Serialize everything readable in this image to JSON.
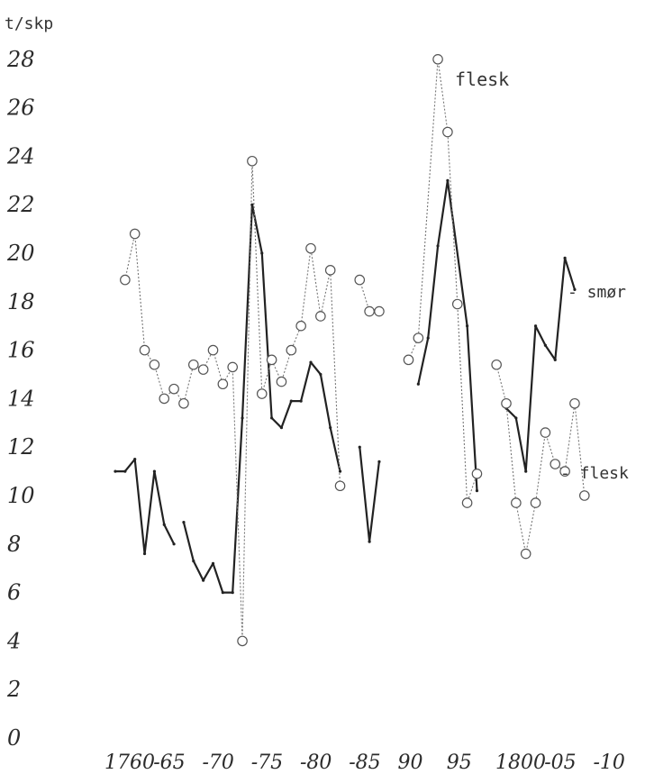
{
  "chart_data": {
    "type": "line",
    "ylabel": "t/skp",
    "ylim": [
      0,
      28
    ],
    "xlim": [
      1760,
      1810
    ],
    "y_ticks": [
      "0",
      "2",
      "4",
      "6",
      "8",
      "10",
      "12",
      "14",
      "16",
      "18",
      "20",
      "22",
      "24",
      "26",
      "28"
    ],
    "x_ticks": [
      {
        "value": 1760,
        "label": "1760"
      },
      {
        "value": 1765,
        "label": "-65"
      },
      {
        "value": 1770,
        "label": "-70"
      },
      {
        "value": 1775,
        "label": "-75"
      },
      {
        "value": 1780,
        "label": "-80"
      },
      {
        "value": 1785,
        "label": "-85"
      },
      {
        "value": 1790,
        "label": "90"
      },
      {
        "value": 1795,
        "label": "95"
      },
      {
        "value": 1800,
        "label": "1800"
      },
      {
        "value": 1805,
        "label": "-05"
      },
      {
        "value": 1810,
        "label": "-10"
      }
    ],
    "grid": false,
    "series": [
      {
        "name": "smør",
        "style": "solid",
        "color": "#222222",
        "segments": [
          [
            [
              1760,
              11.0
            ],
            [
              1761,
              11.0
            ],
            [
              1762,
              11.5
            ],
            [
              1763,
              7.6
            ],
            [
              1764,
              11.0
            ],
            [
              1765,
              8.8
            ],
            [
              1766,
              8.0
            ]
          ],
          [
            [
              1767,
              8.9
            ],
            [
              1768,
              7.3
            ],
            [
              1769,
              6.5
            ],
            [
              1770,
              7.2
            ],
            [
              1771,
              6.0
            ],
            [
              1772,
              6.0
            ],
            [
              1773,
              13.2
            ],
            [
              1774,
              22.0
            ],
            [
              1775,
              20.0
            ],
            [
              1776,
              13.2
            ],
            [
              1777,
              12.8
            ],
            [
              1778,
              13.9
            ],
            [
              1779,
              13.9
            ],
            [
              1780,
              15.5
            ],
            [
              1781,
              15.0
            ],
            [
              1782,
              12.8
            ],
            [
              1783,
              11.0
            ]
          ],
          [
            [
              1785,
              12.0
            ],
            [
              1786,
              8.1
            ],
            [
              1787,
              11.4
            ]
          ],
          [
            [
              1791,
              14.6
            ],
            [
              1792,
              16.5
            ],
            [
              1793,
              20.3
            ],
            [
              1794,
              23.0
            ],
            [
              1796,
              17.0
            ],
            [
              1797,
              10.2
            ]
          ],
          [
            [
              1800,
              13.6
            ],
            [
              1801,
              13.2
            ],
            [
              1802,
              11.0
            ],
            [
              1803,
              17.0
            ],
            [
              1804,
              16.2
            ],
            [
              1805,
              15.6
            ],
            [
              1806,
              19.8
            ],
            [
              1807,
              18.5
            ]
          ]
        ]
      },
      {
        "name": "flesk",
        "style": "dotted",
        "color": "#777777",
        "segments": [
          [
            [
              1761,
              18.9
            ],
            [
              1762,
              20.8
            ],
            [
              1763,
              16.0
            ],
            [
              1764,
              15.4
            ],
            [
              1765,
              14.0
            ],
            [
              1766,
              14.4
            ],
            [
              1767,
              13.8
            ],
            [
              1768,
              15.4
            ],
            [
              1769,
              15.2
            ],
            [
              1770,
              16.0
            ],
            [
              1771,
              14.6
            ],
            [
              1772,
              15.3
            ],
            [
              1773,
              4.0
            ],
            [
              1774,
              23.8
            ],
            [
              1775,
              14.2
            ],
            [
              1776,
              15.6
            ],
            [
              1777,
              14.7
            ],
            [
              1778,
              16.0
            ],
            [
              1779,
              17.0
            ],
            [
              1780,
              20.2
            ],
            [
              1781,
              17.4
            ],
            [
              1782,
              19.3
            ],
            [
              1783,
              10.4
            ]
          ],
          [
            [
              1785,
              18.9
            ],
            [
              1786,
              17.6
            ],
            [
              1787,
              17.6
            ]
          ],
          [
            [
              1790,
              15.6
            ],
            [
              1791,
              16.5
            ],
            [
              1793,
              28.0
            ],
            [
              1794,
              25.0
            ],
            [
              1795,
              17.9
            ],
            [
              1796,
              9.7
            ],
            [
              1797,
              10.9
            ]
          ],
          [
            [
              1799,
              15.4
            ],
            [
              1800,
              13.8
            ],
            [
              1801,
              9.7
            ],
            [
              1802,
              7.6
            ],
            [
              1803,
              9.7
            ],
            [
              1804,
              12.6
            ],
            [
              1805,
              11.3
            ],
            [
              1806,
              11.0
            ],
            [
              1807,
              13.8
            ],
            [
              1808,
              10.0
            ]
          ]
        ]
      }
    ],
    "annotations": [
      {
        "text": "flesk",
        "near": "top peak"
      },
      {
        "text": "- smør",
        "near": "right end of smør line"
      },
      {
        "text": "- flesk",
        "near": "right end of flesk line"
      }
    ]
  }
}
